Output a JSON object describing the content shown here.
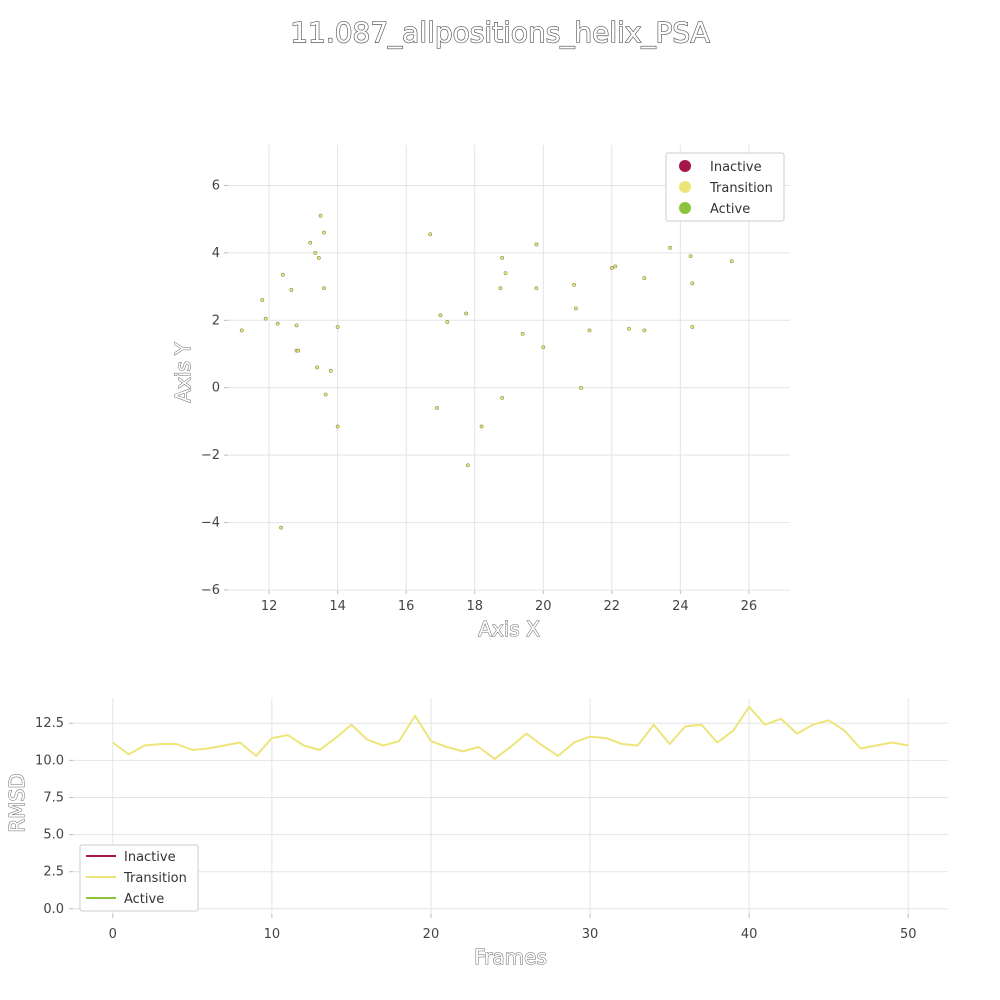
{
  "title": "11.087_allpositions_helix_PSA",
  "colors": {
    "inactive": "#a5154a",
    "transition": "#ede57a",
    "active": "#8cc43c"
  },
  "chart_data": [
    {
      "type": "scatter",
      "xlabel": "Axis X",
      "ylabel": "Axis Y",
      "xlim": [
        10.8,
        27.2
      ],
      "ylim": [
        -6,
        7.2
      ],
      "xticks": [
        12,
        14,
        16,
        18,
        20,
        22,
        24,
        26
      ],
      "yticks": [
        -6,
        -4,
        -2,
        0,
        2,
        4,
        6
      ],
      "legend_placement": "top-right",
      "legend": [
        "Inactive",
        "Transition",
        "Active"
      ],
      "series": [
        {
          "name": "Transition",
          "points": [
            [
              11.2,
              1.7
            ],
            [
              11.8,
              2.6
            ],
            [
              11.9,
              2.05
            ],
            [
              12.25,
              1.9
            ],
            [
              12.4,
              3.35
            ],
            [
              12.35,
              -4.15
            ],
            [
              12.65,
              2.9
            ],
            [
              12.8,
              1.85
            ],
            [
              12.8,
              1.1
            ],
            [
              12.85,
              1.1
            ],
            [
              13.2,
              4.3
            ],
            [
              13.35,
              4.0
            ],
            [
              13.45,
              3.85
            ],
            [
              13.5,
              5.1
            ],
            [
              13.6,
              4.6
            ],
            [
              13.6,
              2.95
            ],
            [
              13.65,
              -0.2
            ],
            [
              13.4,
              0.6
            ],
            [
              13.8,
              0.5
            ],
            [
              14.0,
              1.8
            ],
            [
              14.0,
              -1.15
            ],
            [
              16.7,
              4.55
            ],
            [
              16.9,
              -0.6
            ],
            [
              17.0,
              2.15
            ],
            [
              17.2,
              1.95
            ],
            [
              17.75,
              2.2
            ],
            [
              17.8,
              -2.3
            ],
            [
              18.2,
              -1.15
            ],
            [
              18.75,
              2.95
            ],
            [
              18.8,
              3.85
            ],
            [
              18.9,
              3.4
            ],
            [
              18.8,
              -0.3
            ],
            [
              19.4,
              1.6
            ],
            [
              19.8,
              4.25
            ],
            [
              19.8,
              2.95
            ],
            [
              20.0,
              1.2
            ],
            [
              20.9,
              3.05
            ],
            [
              20.95,
              2.35
            ],
            [
              21.1,
              0.0
            ],
            [
              21.35,
              1.7
            ],
            [
              22.0,
              3.55
            ],
            [
              22.1,
              3.6
            ],
            [
              22.5,
              1.75
            ],
            [
              22.95,
              3.25
            ],
            [
              22.95,
              1.7
            ],
            [
              23.7,
              4.15
            ],
            [
              24.3,
              3.9
            ],
            [
              24.35,
              3.1
            ],
            [
              24.35,
              1.8
            ],
            [
              25.5,
              3.75
            ]
          ]
        }
      ]
    },
    {
      "type": "line",
      "xlabel": "Frames",
      "ylabel": "RMSD",
      "xlim": [
        -2.5,
        52.5
      ],
      "ylim": [
        -0.35,
        14.2
      ],
      "xticks": [
        0,
        10,
        20,
        30,
        40,
        50
      ],
      "yticks": [
        0.0,
        2.5,
        5.0,
        7.5,
        10.0,
        12.5
      ],
      "ytick_labels": [
        "0.0",
        "2.5",
        "5.0",
        "7.5",
        "10.0",
        "12.5"
      ],
      "legend_placement": "bottom-left",
      "legend": [
        "Inactive",
        "Transition",
        "Active"
      ],
      "series": [
        {
          "name": "Transition",
          "x": [
            0,
            1,
            2,
            3,
            4,
            5,
            6,
            7,
            8,
            9,
            10,
            11,
            12,
            13,
            14,
            15,
            16,
            17,
            18,
            19,
            20,
            21,
            22,
            23,
            24,
            25,
            26,
            27,
            28,
            29,
            30,
            31,
            32,
            33,
            34,
            35,
            36,
            37,
            38,
            39,
            40,
            41,
            42,
            43,
            44,
            45,
            46,
            47,
            48,
            49,
            50
          ],
          "values": [
            11.2,
            10.4,
            11.0,
            11.1,
            11.1,
            10.7,
            10.8,
            11.0,
            11.2,
            10.3,
            11.5,
            11.7,
            11.0,
            10.7,
            11.5,
            12.4,
            11.4,
            11.0,
            11.3,
            13.0,
            11.3,
            10.9,
            10.6,
            10.9,
            10.1,
            10.9,
            11.8,
            11.0,
            10.3,
            11.2,
            11.6,
            11.5,
            11.1,
            11.0,
            12.4,
            11.1,
            12.3,
            12.4,
            11.2,
            12.0,
            13.6,
            12.4,
            12.8,
            11.8,
            12.4,
            12.7,
            12.0,
            10.8,
            11.0,
            11.2,
            11.0
          ]
        }
      ]
    }
  ]
}
